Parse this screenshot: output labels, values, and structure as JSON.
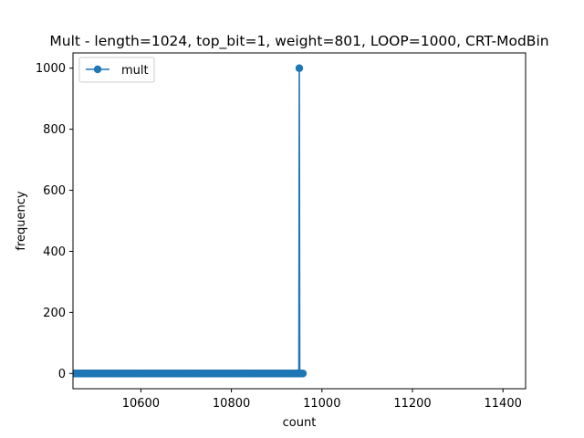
{
  "chart_data": {
    "type": "line",
    "title": "Mult - length=1024, top_bit=1, weight=801, LOOP=1000, CRT-ModBin",
    "xlabel": "count",
    "ylabel": "frequency",
    "xlim": [
      10450,
      11450
    ],
    "ylim": [
      -50,
      1050
    ],
    "xticks": [
      10600,
      10800,
      11000,
      11200,
      11400
    ],
    "yticks": [
      0,
      200,
      400,
      600,
      800,
      1000
    ],
    "grid": false,
    "legend_position": "upper left",
    "colors": {
      "series": "#1f77b4"
    },
    "series": [
      {
        "name": "mult",
        "marker": "circle",
        "x_range": [
          10449,
          10958
        ],
        "x_step": 1,
        "baseline_y": 0,
        "peak": {
          "x": 10950,
          "y": 1000
        }
      }
    ]
  }
}
